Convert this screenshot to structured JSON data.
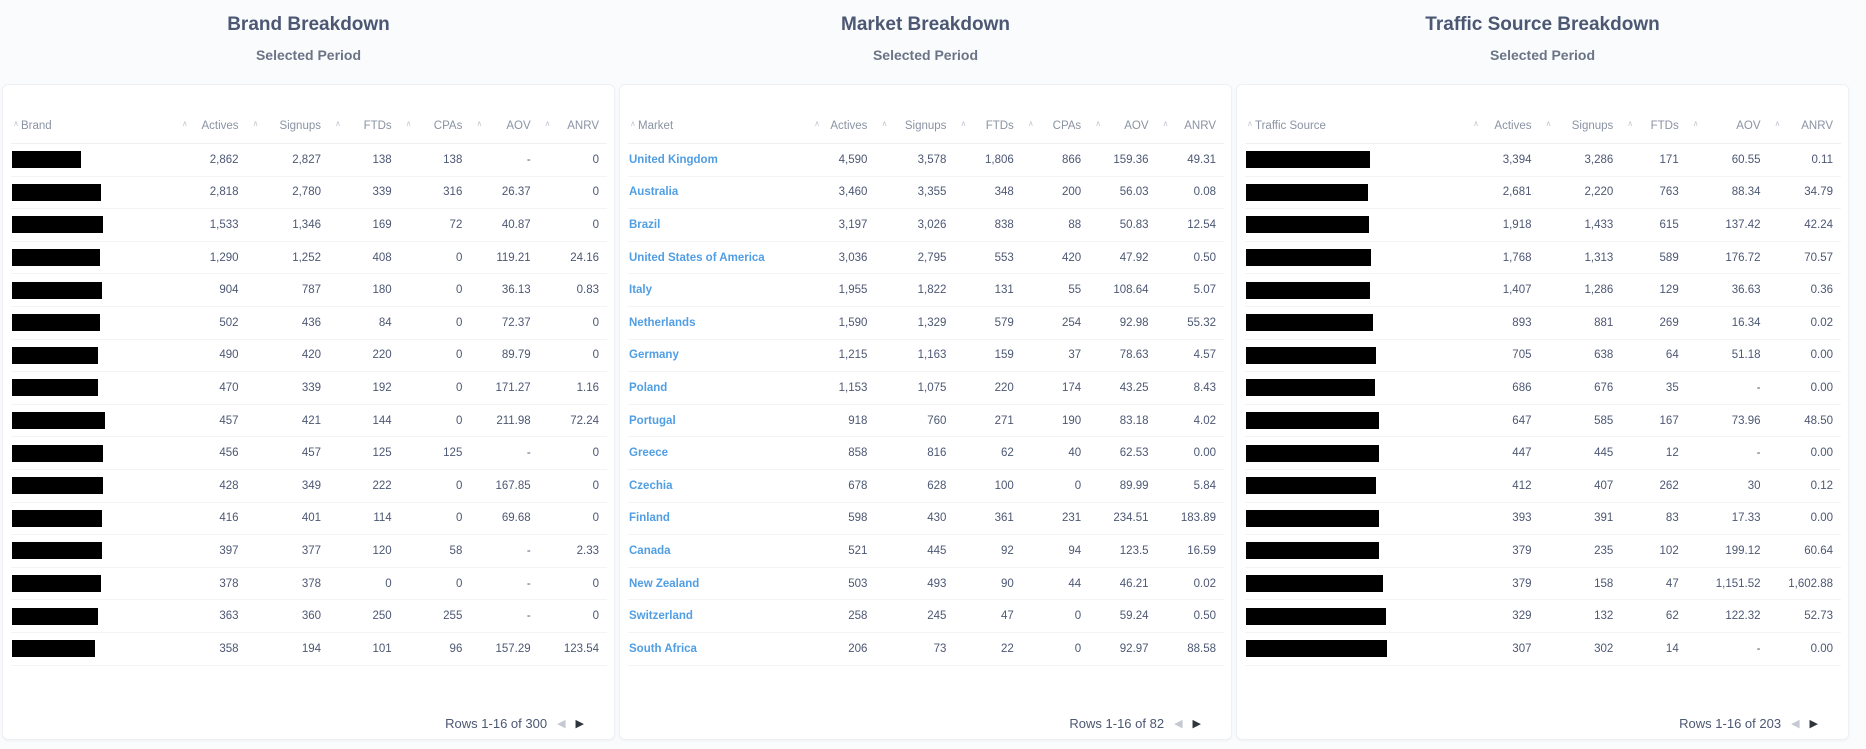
{
  "panels": [
    {
      "title": "Brand Breakdown",
      "subtitle": "Selected Period",
      "first_column": "Brand",
      "columns": [
        "Actives",
        "Signups",
        "FTDs",
        "CPAs",
        "AOV",
        "ANRV"
      ],
      "rows": [
        {
          "name": "",
          "values": [
            "2,862",
            "2,827",
            "138",
            "138",
            "-",
            "0"
          ]
        },
        {
          "name": "",
          "values": [
            "2,818",
            "2,780",
            "339",
            "316",
            "26.37",
            "0"
          ]
        },
        {
          "name": "",
          "values": [
            "1,533",
            "1,346",
            "169",
            "72",
            "40.87",
            "0"
          ]
        },
        {
          "name": "",
          "values": [
            "1,290",
            "1,252",
            "408",
            "0",
            "119.21",
            "24.16"
          ]
        },
        {
          "name": "",
          "values": [
            "904",
            "787",
            "180",
            "0",
            "36.13",
            "0.83"
          ]
        },
        {
          "name": "",
          "values": [
            "502",
            "436",
            "84",
            "0",
            "72.37",
            "0"
          ]
        },
        {
          "name": "",
          "values": [
            "490",
            "420",
            "220",
            "0",
            "89.79",
            "0"
          ]
        },
        {
          "name": "",
          "values": [
            "470",
            "339",
            "192",
            "0",
            "171.27",
            "1.16"
          ]
        },
        {
          "name": "",
          "values": [
            "457",
            "421",
            "144",
            "0",
            "211.98",
            "72.24"
          ]
        },
        {
          "name": "",
          "values": [
            "456",
            "457",
            "125",
            "125",
            "-",
            "0"
          ]
        },
        {
          "name": "",
          "values": [
            "428",
            "349",
            "222",
            "0",
            "167.85",
            "0"
          ]
        },
        {
          "name": "",
          "values": [
            "416",
            "401",
            "114",
            "0",
            "69.68",
            "0"
          ]
        },
        {
          "name": "",
          "values": [
            "397",
            "377",
            "120",
            "58",
            "-",
            "2.33"
          ]
        },
        {
          "name": "",
          "values": [
            "378",
            "378",
            "0",
            "0",
            "-",
            "0"
          ]
        },
        {
          "name": "",
          "values": [
            "363",
            "360",
            "250",
            "255",
            "-",
            "0"
          ]
        },
        {
          "name": "",
          "values": [
            "358",
            "194",
            "101",
            "96",
            "157.29",
            "123.54"
          ]
        }
      ],
      "pager": "Rows 1-16 of 300"
    },
    {
      "title": "Market Breakdown",
      "subtitle": "Selected Period",
      "first_column": "Market",
      "columns": [
        "Actives",
        "Signups",
        "FTDs",
        "CPAs",
        "AOV",
        "ANRV"
      ],
      "rows": [
        {
          "name": "United Kingdom",
          "values": [
            "4,590",
            "3,578",
            "1,806",
            "866",
            "159.36",
            "49.31"
          ]
        },
        {
          "name": "Australia",
          "values": [
            "3,460",
            "3,355",
            "348",
            "200",
            "56.03",
            "0.08"
          ]
        },
        {
          "name": "Brazil",
          "values": [
            "3,197",
            "3,026",
            "838",
            "88",
            "50.83",
            "12.54"
          ]
        },
        {
          "name": "United States of America",
          "values": [
            "3,036",
            "2,795",
            "553",
            "420",
            "47.92",
            "0.50"
          ]
        },
        {
          "name": "Italy",
          "values": [
            "1,955",
            "1,822",
            "131",
            "55",
            "108.64",
            "5.07"
          ]
        },
        {
          "name": "Netherlands",
          "values": [
            "1,590",
            "1,329",
            "579",
            "254",
            "92.98",
            "55.32"
          ]
        },
        {
          "name": "Germany",
          "values": [
            "1,215",
            "1,163",
            "159",
            "37",
            "78.63",
            "4.57"
          ]
        },
        {
          "name": "Poland",
          "values": [
            "1,153",
            "1,075",
            "220",
            "174",
            "43.25",
            "8.43"
          ]
        },
        {
          "name": "Portugal",
          "values": [
            "918",
            "760",
            "271",
            "190",
            "83.18",
            "4.02"
          ]
        },
        {
          "name": "Greece",
          "values": [
            "858",
            "816",
            "62",
            "40",
            "62.53",
            "0.00"
          ]
        },
        {
          "name": "Czechia",
          "values": [
            "678",
            "628",
            "100",
            "0",
            "89.99",
            "5.84"
          ]
        },
        {
          "name": "Finland",
          "values": [
            "598",
            "430",
            "361",
            "231",
            "234.51",
            "183.89"
          ]
        },
        {
          "name": "Canada",
          "values": [
            "521",
            "445",
            "92",
            "94",
            "123.5",
            "16.59"
          ]
        },
        {
          "name": "New Zealand",
          "values": [
            "503",
            "493",
            "90",
            "44",
            "46.21",
            "0.02"
          ]
        },
        {
          "name": "Switzerland",
          "values": [
            "258",
            "245",
            "47",
            "0",
            "59.24",
            "0.50"
          ]
        },
        {
          "name": "South Africa",
          "values": [
            "206",
            "73",
            "22",
            "0",
            "92.97",
            "88.58"
          ]
        }
      ],
      "pager": "Rows 1-16 of 82"
    },
    {
      "title": "Traffic Source Breakdown",
      "subtitle": "Selected Period",
      "first_column": "Traffic Source",
      "columns": [
        "Actives",
        "Signups",
        "FTDs",
        "AOV",
        "ANRV"
      ],
      "rows": [
        {
          "name": "",
          "values": [
            "3,394",
            "3,286",
            "171",
            "60.55",
            "0.11"
          ]
        },
        {
          "name": "",
          "values": [
            "2,681",
            "2,220",
            "763",
            "88.34",
            "34.79"
          ]
        },
        {
          "name": "",
          "values": [
            "1,918",
            "1,433",
            "615",
            "137.42",
            "42.24"
          ]
        },
        {
          "name": "",
          "values": [
            "1,768",
            "1,313",
            "589",
            "176.72",
            "70.57"
          ]
        },
        {
          "name": "",
          "values": [
            "1,407",
            "1,286",
            "129",
            "36.63",
            "0.36"
          ]
        },
        {
          "name": "",
          "values": [
            "893",
            "881",
            "269",
            "16.34",
            "0.02"
          ]
        },
        {
          "name": "",
          "values": [
            "705",
            "638",
            "64",
            "51.18",
            "0.00"
          ]
        },
        {
          "name": "",
          "values": [
            "686",
            "676",
            "35",
            "-",
            "0.00"
          ]
        },
        {
          "name": "",
          "values": [
            "647",
            "585",
            "167",
            "73.96",
            "48.50"
          ]
        },
        {
          "name": "",
          "values": [
            "447",
            "445",
            "12",
            "-",
            "0.00"
          ]
        },
        {
          "name": "",
          "values": [
            "412",
            "407",
            "262",
            "30",
            "0.12"
          ]
        },
        {
          "name": "",
          "values": [
            "393",
            "391",
            "83",
            "17.33",
            "0.00"
          ]
        },
        {
          "name": "",
          "values": [
            "379",
            "235",
            "102",
            "199.12",
            "60.64"
          ]
        },
        {
          "name": "",
          "values": [
            "379",
            "158",
            "47",
            "1,151.52",
            "1,602.88"
          ]
        },
        {
          "name": "",
          "values": [
            "329",
            "132",
            "62",
            "122.32",
            "52.73"
          ]
        },
        {
          "name": "",
          "values": [
            "307",
            "302",
            "14",
            "-",
            "0.00"
          ]
        }
      ],
      "pager": "Rows 1-16 of 203"
    }
  ],
  "icons": {
    "sort": "sort-arrow-icon",
    "prev": "chevron-left-icon",
    "next": "chevron-right-icon"
  }
}
